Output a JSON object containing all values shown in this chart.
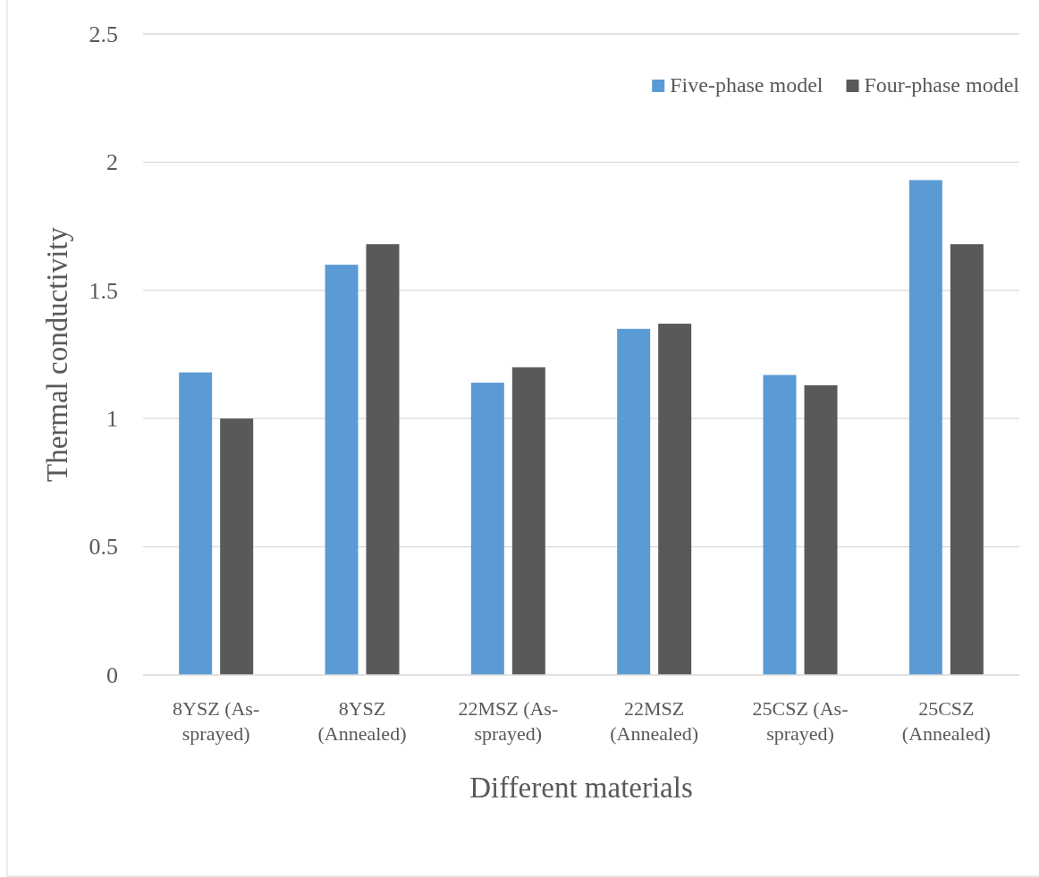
{
  "chart_data": {
    "type": "bar",
    "xlabel": "Different materials",
    "ylabel": "Thermal conductivity",
    "categories": [
      "8YSZ (As-sprayed)",
      "8YSZ (Annealed)",
      "22MSZ (As-sprayed)",
      "22MSZ (Annealed)",
      "25CSZ (As-sprayed)",
      "25CSZ (Annealed)"
    ],
    "series": [
      {
        "name": "Five-phase model",
        "color": "#5b9bd5",
        "values": [
          1.18,
          1.6,
          1.14,
          1.35,
          1.17,
          1.93
        ]
      },
      {
        "name": "Four-phase model",
        "color": "#595959",
        "values": [
          1.0,
          1.68,
          1.2,
          1.37,
          1.13,
          1.68
        ]
      }
    ],
    "ylim": [
      0,
      2.5
    ],
    "yticks": [
      0,
      0.5,
      1,
      1.5,
      2,
      2.5
    ],
    "grid": "y",
    "legend": "top right"
  }
}
